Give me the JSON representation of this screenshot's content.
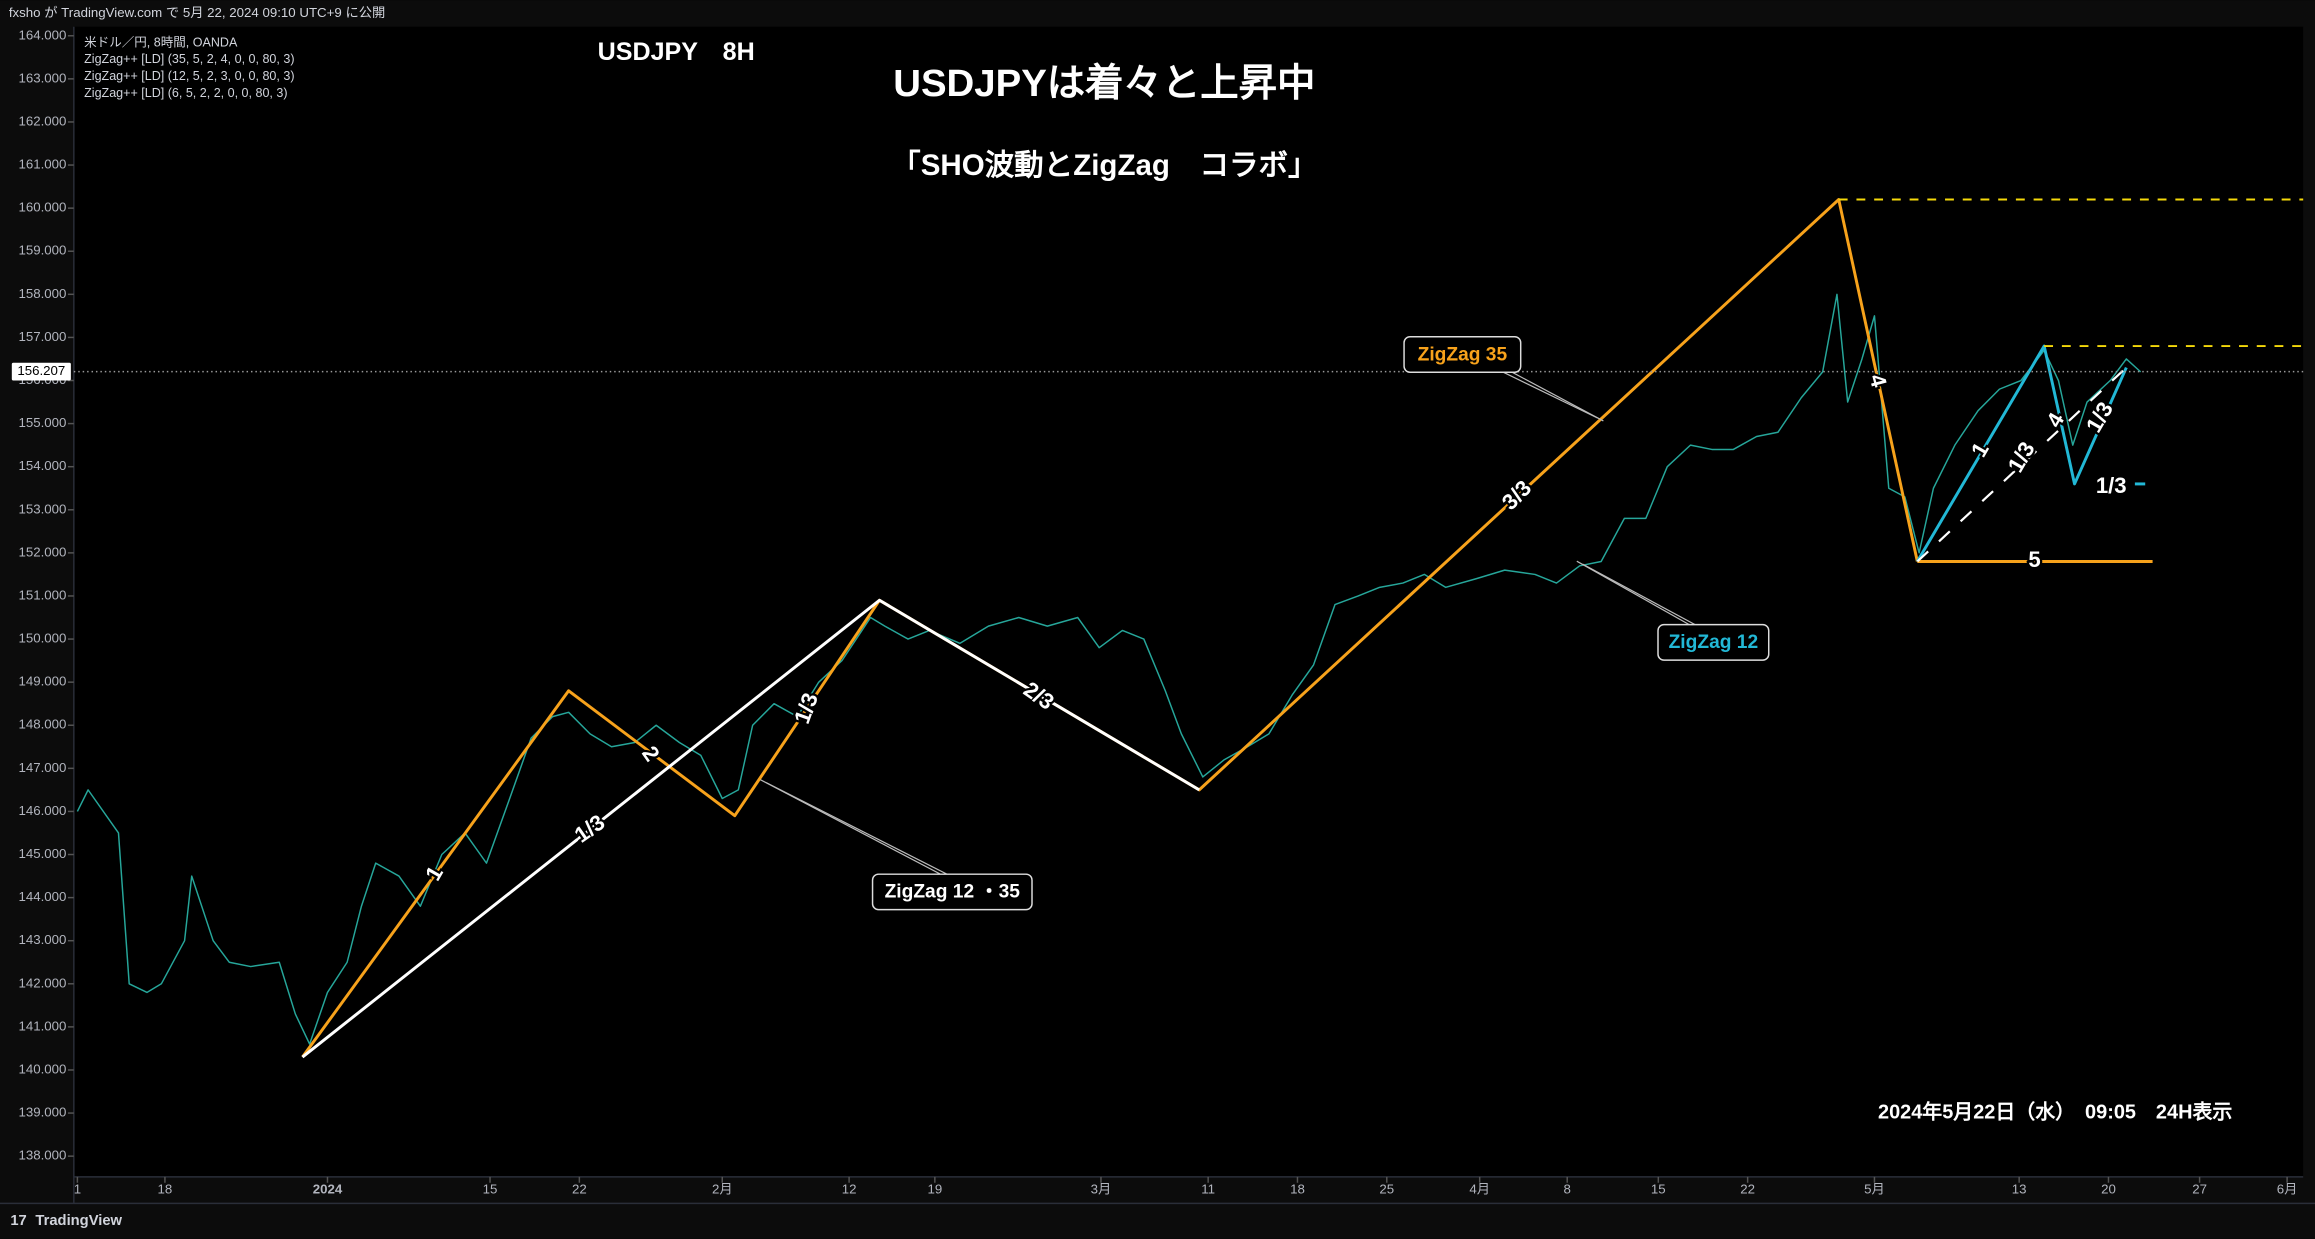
{
  "header": {
    "publisher": "fxsho が TradingView.com で 5月 22, 2024 09:10 UTC+9 に公開",
    "brand": "TradingView"
  },
  "chart_data": {
    "type": "line",
    "symbol_label": "USDJPY　8H",
    "title": "USDJPYは着々と上昇中",
    "subtitle": "「SHO波動とZigZag　コラボ」",
    "legend_lines": [
      "米ドル／円, 8時間, OANDA",
      "ZigZag++ [LD] (35, 5, 2, 4, 0, 0, 80, 3)",
      "ZigZag++ [LD] (12, 5, 2, 3, 0, 0, 80, 3)",
      "ZigZag++ [LD] (6, 5, 2, 2, 0, 0, 80, 3)"
    ],
    "note": "2024年5月22日（水）　09:05　24H表示",
    "last_price": {
      "value": 156.207,
      "label": "156.207"
    },
    "grid": false,
    "xlim": [
      -5.1,
      119.7
    ],
    "ylim": [
      137.52,
      164.21
    ],
    "xticks": [
      {
        "value": -4.9,
        "label": "1"
      },
      {
        "value": 0,
        "label": "18"
      },
      {
        "value": 9.1,
        "label": "2024"
      },
      {
        "value": 18.2,
        "label": "15"
      },
      {
        "value": 23.2,
        "label": "22"
      },
      {
        "value": 31.2,
        "label": "2月"
      },
      {
        "value": 38.3,
        "label": "12"
      },
      {
        "value": 43.1,
        "label": "19"
      },
      {
        "value": 52.4,
        "label": "3月"
      },
      {
        "value": 58.4,
        "label": "11"
      },
      {
        "value": 63.4,
        "label": "18"
      },
      {
        "value": 68.4,
        "label": "25"
      },
      {
        "value": 73.6,
        "label": "4月"
      },
      {
        "value": 78.5,
        "label": "8"
      },
      {
        "value": 83.6,
        "label": "15"
      },
      {
        "value": 88.6,
        "label": "22"
      },
      {
        "value": 95.7,
        "label": "5月"
      },
      {
        "value": 103.8,
        "label": "13"
      },
      {
        "value": 108.8,
        "label": "20"
      },
      {
        "value": 113.9,
        "label": "27"
      },
      {
        "value": 118.8,
        "label": "6月"
      }
    ],
    "yticks": [
      {
        "value": 164,
        "label": "164.000"
      },
      {
        "value": 163,
        "label": "163.000"
      },
      {
        "value": 162,
        "label": "162.000"
      },
      {
        "value": 161,
        "label": "161.000"
      },
      {
        "value": 160,
        "label": "160.000"
      },
      {
        "value": 159,
        "label": "159.000"
      },
      {
        "value": 158,
        "label": "158.000"
      },
      {
        "value": 157,
        "label": "157.000"
      },
      {
        "value": 156,
        "label": "156.000"
      },
      {
        "value": 155,
        "label": "155.000"
      },
      {
        "value": 154,
        "label": "154.000"
      },
      {
        "value": 153,
        "label": "153.000"
      },
      {
        "value": 152,
        "label": "152.000"
      },
      {
        "value": 151,
        "label": "151.000"
      },
      {
        "value": 150,
        "label": "150.000"
      },
      {
        "value": 149,
        "label": "149.000"
      },
      {
        "value": 148,
        "label": "148.000"
      },
      {
        "value": 147,
        "label": "147.000"
      },
      {
        "value": 146,
        "label": "146.000"
      },
      {
        "value": 145,
        "label": "145.000"
      },
      {
        "value": 144,
        "label": "144.000"
      },
      {
        "value": 143,
        "label": "143.000"
      },
      {
        "value": 142,
        "label": "142.000"
      },
      {
        "value": 141,
        "label": "141.000"
      },
      {
        "value": 140,
        "label": "140.000"
      },
      {
        "value": 139,
        "label": "139.000"
      },
      {
        "value": 138,
        "label": "138.000"
      }
    ],
    "series": [
      {
        "name": "USDJPY",
        "color": "#26a69a",
        "x": [
          -4.9,
          -4.3,
          -2.6,
          -2,
          -1,
          -0.2,
          1.1,
          1.5,
          2.7,
          3.6,
          4.8,
          6.4,
          7.3,
          8.1,
          9.1,
          10.2,
          11,
          11.8,
          13.1,
          14.3,
          15.5,
          16.8,
          18,
          19.3,
          20.5,
          21.7,
          22.6,
          23.8,
          25,
          26.3,
          27.5,
          28.8,
          30,
          31.2,
          32.1,
          32.9,
          34.1,
          35.4,
          36.6,
          37.9,
          39.5,
          40.3,
          41.6,
          42.8,
          44.5,
          46.1,
          47.8,
          49.4,
          51.1,
          52.3,
          53.6,
          54.8,
          56,
          56.9,
          58.1,
          59.3,
          60.6,
          61.8,
          63.1,
          64.3,
          65.5,
          66.8,
          68,
          69.3,
          70.5,
          71.7,
          73.4,
          75,
          76.7,
          77.9,
          79.2,
          80.4,
          81.7,
          82.9,
          84.1,
          85.4,
          86.6,
          87.8,
          89.1,
          90.3,
          91.6,
          92.8,
          93.6,
          94.2,
          95,
          95.7,
          96.5,
          97.4,
          98.2,
          99,
          100.2,
          101.5,
          102.7,
          103.9,
          105.2,
          106,
          106.8,
          107.6,
          108.9,
          109.8,
          110.6
        ],
        "values": [
          146,
          146.5,
          145.5,
          142,
          141.8,
          142,
          143,
          144.5,
          143,
          142.5,
          142.4,
          142.5,
          141.3,
          140.6,
          141.8,
          142.5,
          143.8,
          144.8,
          144.5,
          143.8,
          145,
          145.5,
          144.8,
          146.3,
          147.7,
          148.2,
          148.3,
          147.8,
          147.5,
          147.6,
          148,
          147.6,
          147.3,
          146.3,
          146.5,
          148,
          148.5,
          148.2,
          149,
          149.5,
          150.5,
          150.3,
          150,
          150.2,
          149.9,
          150.3,
          150.5,
          150.3,
          150.5,
          149.8,
          150.2,
          150,
          148.8,
          147.8,
          146.8,
          147.2,
          147.5,
          147.8,
          148.7,
          149.4,
          150.8,
          151,
          151.2,
          151.3,
          151.5,
          151.2,
          151.4,
          151.6,
          151.5,
          151.3,
          151.7,
          151.8,
          152.8,
          152.8,
          154,
          154.5,
          154.4,
          154.4,
          154.7,
          154.8,
          155.6,
          156.2,
          158,
          155.5,
          156.5,
          157.5,
          153.5,
          153.3,
          152,
          153.5,
          154.5,
          155.3,
          155.8,
          156,
          156.7,
          156,
          154.5,
          155.5,
          156,
          156.5,
          156.2
        ]
      },
      {
        "name": "ZigZag 35",
        "color": "#f7a21b",
        "x": [
          7.7,
          22.6,
          31.9,
          40,
          57.9,
          93.7,
          98.1
        ],
        "values": [
          140.3,
          148.8,
          145.9,
          150.9,
          146.5,
          160.2,
          151.8
        ]
      },
      {
        "name": "ZigZag 12 ・35",
        "color": "#ffffff",
        "x": [
          7.7,
          40,
          57.9
        ],
        "values": [
          140.3,
          150.9,
          146.5
        ]
      },
      {
        "name": "ZigZag 12",
        "color": "#22b8d6",
        "x": [
          98.1,
          105.2,
          106.9,
          109.8
        ],
        "values": [
          151.8,
          156.8,
          153.6,
          156.3
        ]
      }
    ],
    "wave_labels": [
      "1",
      "2",
      "1/3",
      "1/3",
      "2/3",
      "3/3",
      "4",
      "5",
      "1",
      "1/3",
      "4",
      "1/3",
      "1/3"
    ]
  }
}
